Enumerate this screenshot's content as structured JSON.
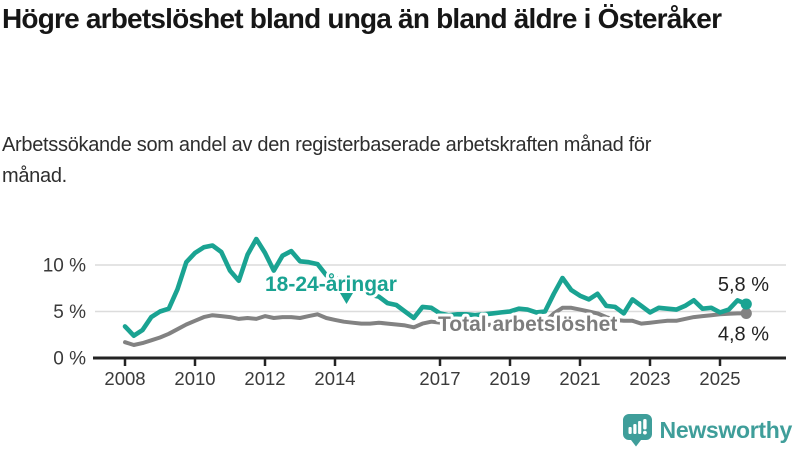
{
  "header": {
    "title": "Högre arbetslöshet bland unga än bland äldre i Österåker",
    "subtitle": "Arbetssökande som andel av den registerbaserade arbetskraften månad för månad."
  },
  "colors": {
    "young_line": "#1aa392",
    "total_line": "#828282",
    "axis": "#232323",
    "grid": "#dcdcdc",
    "tick_label": "#3a3a3a",
    "end_label": "#222222",
    "brand_teal": "#3f9e9a"
  },
  "chart_data": {
    "type": "line",
    "title": "Högre arbetslöshet bland unga än bland äldre i Österåker",
    "xlabel": "",
    "ylabel": "Arbetssökande som andel av den registerbaserade arbetskraften",
    "x_unit": "decimal_year_quarterly",
    "grid": "horizontal",
    "legend_position": "inline-labels",
    "xlim": [
      2007.9,
      2026.4
    ],
    "ylim": [
      0,
      13.8
    ],
    "y_ticks": {
      "values": [
        0,
        5,
        10
      ],
      "labels": [
        "0 %",
        "5 %",
        "10 %"
      ]
    },
    "x_ticks": {
      "values": [
        2008,
        2010,
        2012,
        2014,
        2017,
        2019,
        2021,
        2023,
        2025
      ],
      "labels": [
        "2008",
        "2010",
        "2012",
        "2014",
        "2017",
        "2019",
        "2021",
        "2023",
        "2025"
      ]
    },
    "x": [
      2008.0,
      2008.25,
      2008.5,
      2008.75,
      2009.0,
      2009.25,
      2009.5,
      2009.75,
      2010.0,
      2010.25,
      2010.5,
      2010.75,
      2011.0,
      2011.25,
      2011.5,
      2011.75,
      2012.0,
      2012.25,
      2012.5,
      2012.75,
      2013.0,
      2013.25,
      2013.5,
      2013.75,
      2014.0,
      2014.25,
      2014.5,
      2014.75,
      2015.0,
      2015.25,
      2015.5,
      2015.75,
      2016.0,
      2016.25,
      2016.5,
      2016.75,
      2017.0,
      2017.25,
      2017.5,
      2017.75,
      2018.0,
      2018.25,
      2018.5,
      2018.75,
      2019.0,
      2019.25,
      2019.5,
      2019.75,
      2020.0,
      2020.25,
      2020.5,
      2020.75,
      2021.0,
      2021.25,
      2021.5,
      2021.75,
      2022.0,
      2022.25,
      2022.5,
      2022.75,
      2023.0,
      2023.25,
      2023.5,
      2023.75,
      2024.0,
      2024.25,
      2024.5,
      2024.75,
      2025.0,
      2025.25,
      2025.5,
      2025.75
    ],
    "series": [
      {
        "name": "18-24-åringar",
        "color": "#1aa392",
        "end_label": "5,8 %",
        "end_value": 5.8,
        "values": [
          3.4,
          2.4,
          3.0,
          4.4,
          5.0,
          5.3,
          7.4,
          10.3,
          11.3,
          11.9,
          12.1,
          11.4,
          9.4,
          8.3,
          11.1,
          12.8,
          11.3,
          9.4,
          11.0,
          11.5,
          10.4,
          10.3,
          10.1,
          8.9,
          8.6,
          8.2,
          7.7,
          7.3,
          6.8,
          6.6,
          5.9,
          5.7,
          5.0,
          4.3,
          5.5,
          5.4,
          4.8,
          4.6,
          4.7,
          4.7,
          4.6,
          4.7,
          4.8,
          4.9,
          5.0,
          5.3,
          5.2,
          4.9,
          5.0,
          6.9,
          8.6,
          7.3,
          6.7,
          6.3,
          6.9,
          5.6,
          5.5,
          4.8,
          6.3,
          5.6,
          4.9,
          5.4,
          5.3,
          5.2,
          5.6,
          6.2,
          5.3,
          5.4,
          4.9,
          5.2,
          6.2,
          5.8
        ]
      },
      {
        "name": "Total arbetslöshet",
        "color": "#828282",
        "end_label": "4,8 %",
        "end_value": 4.8,
        "values": [
          1.7,
          1.4,
          1.6,
          1.9,
          2.2,
          2.6,
          3.1,
          3.6,
          4.0,
          4.4,
          4.6,
          4.5,
          4.4,
          4.2,
          4.3,
          4.2,
          4.5,
          4.3,
          4.4,
          4.4,
          4.3,
          4.5,
          4.7,
          4.3,
          4.1,
          3.9,
          3.8,
          3.7,
          3.7,
          3.8,
          3.7,
          3.6,
          3.5,
          3.3,
          3.7,
          3.9,
          3.8,
          3.7,
          3.6,
          3.6,
          3.5,
          3.5,
          3.6,
          3.6,
          3.6,
          3.7,
          3.8,
          3.8,
          3.9,
          4.8,
          5.4,
          5.4,
          5.2,
          5.0,
          4.8,
          4.4,
          4.1,
          4.0,
          4.0,
          3.7,
          3.8,
          3.9,
          4.0,
          4.0,
          4.2,
          4.4,
          4.5,
          4.6,
          4.7,
          4.75,
          4.8,
          4.8
        ]
      }
    ],
    "annotations": [
      {
        "text": "18-24-åringar",
        "series": 0,
        "style": "bold-teal-with-down-arrow"
      },
      {
        "text": "Total arbetslöshet",
        "series": 1,
        "style": "bold-gray-halo"
      }
    ]
  },
  "footer": {
    "brand": "Newsworthy"
  }
}
